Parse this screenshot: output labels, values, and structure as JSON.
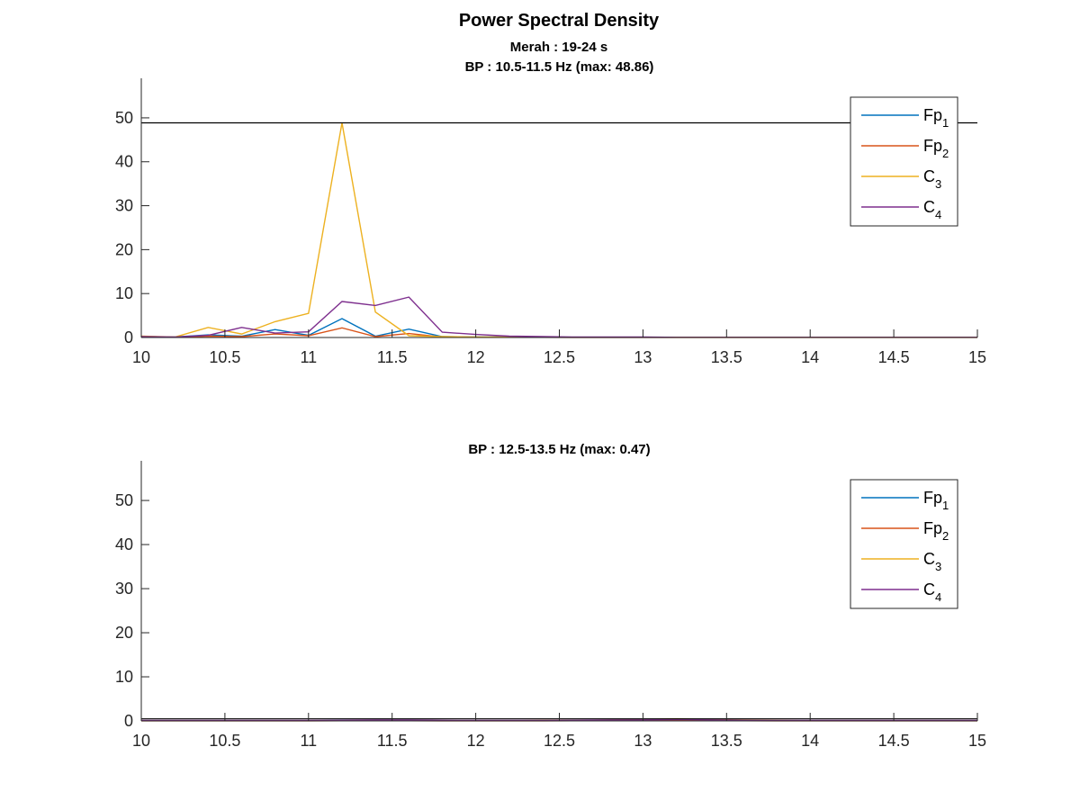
{
  "figure": {
    "title": "Power Spectral Density",
    "subtitle": "Merah : 19-24 s"
  },
  "legend_labels": [
    {
      "base": "Fp",
      "sub": "1"
    },
    {
      "base": "Fp",
      "sub": "2"
    },
    {
      "base": "C",
      "sub": "3"
    },
    {
      "base": "C",
      "sub": "4"
    }
  ],
  "colors": {
    "Fp1": "#0072BD",
    "Fp2": "#D95319",
    "C3": "#EDB120",
    "C4": "#7E2F8E",
    "axis": "#262626",
    "threshold": "#000000"
  },
  "chart_data": [
    {
      "type": "line",
      "title": "BP : 10.5-11.5 Hz (max: 48.86)",
      "xlim": [
        10,
        15
      ],
      "ylim": [
        0,
        59
      ],
      "xticks": [
        10,
        10.5,
        11,
        11.5,
        12,
        12.5,
        13,
        13.5,
        14,
        14.5,
        15
      ],
      "xtick_labels": [
        "10",
        "10.5",
        "11",
        "11.5",
        "12",
        "12.5",
        "13",
        "13.5",
        "14",
        "14.5",
        "15"
      ],
      "yticks": [
        0,
        10,
        20,
        30,
        40,
        50
      ],
      "ytick_labels": [
        "0",
        "10",
        "20",
        "30",
        "40",
        "50"
      ],
      "threshold": 48.86,
      "legend_position": "top-right",
      "grid": false,
      "x": [
        10,
        10.2,
        10.4,
        10.6,
        10.8,
        11,
        11.2,
        11.4,
        11.6,
        11.8,
        12,
        12.2,
        12.4,
        12.6,
        12.8,
        13,
        13.2,
        13.4,
        13.6,
        13.8,
        14,
        14.2,
        14.4,
        14.6,
        14.8,
        15
      ],
      "series": [
        {
          "key": "Fp1",
          "values": [
            0.2,
            0.1,
            0.6,
            0.3,
            1.8,
            0.5,
            4.3,
            0.3,
            1.9,
            0.2,
            0.1,
            0.1,
            0.1,
            0.05,
            0.05,
            0.05,
            0.05,
            0.05,
            0.05,
            0.05,
            0.05,
            0.05,
            0.05,
            0.05,
            0.05,
            0.05
          ]
        },
        {
          "key": "Fp2",
          "values": [
            0.1,
            0.05,
            0.3,
            0.2,
            0.8,
            0.4,
            2.2,
            0.2,
            0.9,
            0.1,
            0.05,
            0.05,
            0.05,
            0.02,
            0.02,
            0.02,
            0.02,
            0.02,
            0.02,
            0.02,
            0.02,
            0.02,
            0.02,
            0.02,
            0.02,
            0.02
          ]
        },
        {
          "key": "C3",
          "values": [
            0.3,
            0.1,
            2.3,
            0.8,
            3.6,
            5.5,
            48.86,
            5.8,
            0.4,
            0.2,
            0.1,
            0.1,
            0.1,
            0.05,
            0.05,
            0.05,
            0.05,
            0.05,
            0.05,
            0.05,
            0.05,
            0.05,
            0.05,
            0.05,
            0.05,
            0.05
          ]
        },
        {
          "key": "C4",
          "values": [
            0.2,
            0.1,
            0.5,
            2.3,
            1.0,
            1.3,
            8.2,
            7.3,
            9.2,
            1.2,
            0.7,
            0.3,
            0.2,
            0.1,
            0.1,
            0.1,
            0.05,
            0.05,
            0.05,
            0.05,
            0.05,
            0.05,
            0.05,
            0.05,
            0.05,
            0.05
          ]
        }
      ]
    },
    {
      "type": "line",
      "title": "BP : 12.5-13.5 Hz (max: 0.47)",
      "xlim": [
        10,
        15
      ],
      "ylim": [
        0,
        59
      ],
      "xticks": [
        10,
        10.5,
        11,
        11.5,
        12,
        12.5,
        13,
        13.5,
        14,
        14.5,
        15
      ],
      "xtick_labels": [
        "10",
        "10.5",
        "11",
        "11.5",
        "12",
        "12.5",
        "13",
        "13.5",
        "14",
        "14.5",
        "15"
      ],
      "yticks": [
        0,
        10,
        20,
        30,
        40,
        50
      ],
      "ytick_labels": [
        "0",
        "10",
        "20",
        "30",
        "40",
        "50"
      ],
      "threshold": 0.47,
      "legend_position": "top-right",
      "grid": false,
      "x": [
        10,
        10.2,
        10.4,
        10.6,
        10.8,
        11,
        11.2,
        11.4,
        11.6,
        11.8,
        12,
        12.2,
        12.4,
        12.6,
        12.8,
        13,
        13.2,
        13.4,
        13.6,
        13.8,
        14,
        14.2,
        14.4,
        14.6,
        14.8,
        15
      ],
      "series": [
        {
          "key": "Fp1",
          "values": [
            0.05,
            0.05,
            0.05,
            0.05,
            0.05,
            0.05,
            0.1,
            0.1,
            0.1,
            0.05,
            0.05,
            0.05,
            0.05,
            0.1,
            0.1,
            0.15,
            0.2,
            0.15,
            0.1,
            0.05,
            0.05,
            0.05,
            0.05,
            0.05,
            0.05,
            0.05
          ]
        },
        {
          "key": "Fp2",
          "values": [
            0.02,
            0.02,
            0.02,
            0.02,
            0.02,
            0.02,
            0.05,
            0.05,
            0.05,
            0.02,
            0.02,
            0.02,
            0.02,
            0.05,
            0.05,
            0.1,
            0.15,
            0.1,
            0.05,
            0.02,
            0.02,
            0.02,
            0.02,
            0.02,
            0.02,
            0.02
          ]
        },
        {
          "key": "C3",
          "values": [
            0.05,
            0.05,
            0.05,
            0.05,
            0.05,
            0.05,
            0.05,
            0.05,
            0.05,
            0.05,
            0.05,
            0.05,
            0.1,
            0.1,
            0.2,
            0.3,
            0.47,
            0.3,
            0.2,
            0.1,
            0.05,
            0.05,
            0.05,
            0.05,
            0.05,
            0.05
          ]
        },
        {
          "key": "C4",
          "values": [
            0.1,
            0.1,
            0.1,
            0.1,
            0.1,
            0.1,
            0.15,
            0.2,
            0.2,
            0.15,
            0.1,
            0.1,
            0.1,
            0.15,
            0.2,
            0.25,
            0.3,
            0.25,
            0.15,
            0.1,
            0.1,
            0.1,
            0.1,
            0.1,
            0.1,
            0.1
          ]
        }
      ]
    }
  ]
}
